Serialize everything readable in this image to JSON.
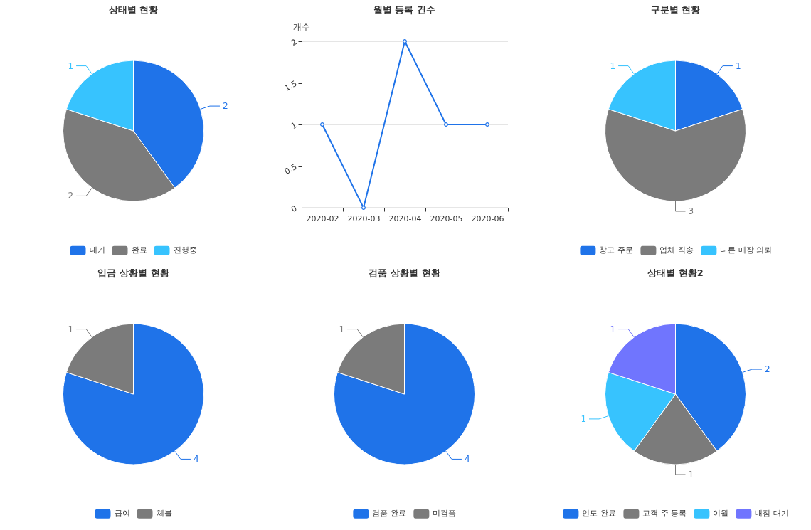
{
  "chart_data": [
    {
      "type": "pie",
      "title": "상태별 현황",
      "categories": [
        "대기",
        "완료",
        "진행중"
      ],
      "values": [
        2,
        2,
        1
      ],
      "colors": [
        "#1f73e9",
        "#7b7b7b",
        "#37c3fe"
      ],
      "data_labels": true,
      "legend": "bottom"
    },
    {
      "type": "line",
      "title": "월별 등록 건수",
      "ylabel": "개수",
      "categories": [
        "2020-02",
        "2020-03",
        "2020-04",
        "2020-05",
        "2020-06"
      ],
      "series": [
        {
          "color": "#1f73e9",
          "values": [
            1,
            0,
            2,
            1,
            1
          ]
        }
      ],
      "ylim": [
        0,
        2
      ],
      "yticks": [
        0,
        0.5,
        1,
        1.5,
        2
      ],
      "grid": "y",
      "marker": "circle"
    },
    {
      "type": "pie",
      "title": "구분별 현황",
      "categories": [
        "창고 주문",
        "업체 직송",
        "다른 매장 의뢰"
      ],
      "values": [
        1,
        3,
        1
      ],
      "colors": [
        "#1f73e9",
        "#7b7b7b",
        "#37c3fe"
      ],
      "data_labels": true,
      "legend": "bottom"
    },
    {
      "type": "pie",
      "title": "입금 상황별 현황",
      "categories": [
        "급여",
        "체불"
      ],
      "values": [
        4,
        1
      ],
      "colors": [
        "#1f73e9",
        "#7b7b7b"
      ],
      "data_labels": true,
      "legend": "bottom"
    },
    {
      "type": "pie",
      "title": "검품 상황별 현황",
      "categories": [
        "검품 완료",
        "미검품"
      ],
      "values": [
        4,
        1
      ],
      "colors": [
        "#1f73e9",
        "#7b7b7b"
      ],
      "data_labels": true,
      "legend": "bottom"
    },
    {
      "type": "pie",
      "title": "상태별 현황2",
      "categories": [
        "인도 완료",
        "고객 주 등록",
        "이월",
        "내점 대기"
      ],
      "values": [
        2,
        1,
        1,
        1
      ],
      "colors": [
        "#1f73e9",
        "#7b7b7b",
        "#37c3fe",
        "#7075fe"
      ],
      "data_labels": true,
      "legend": "bottom"
    }
  ]
}
